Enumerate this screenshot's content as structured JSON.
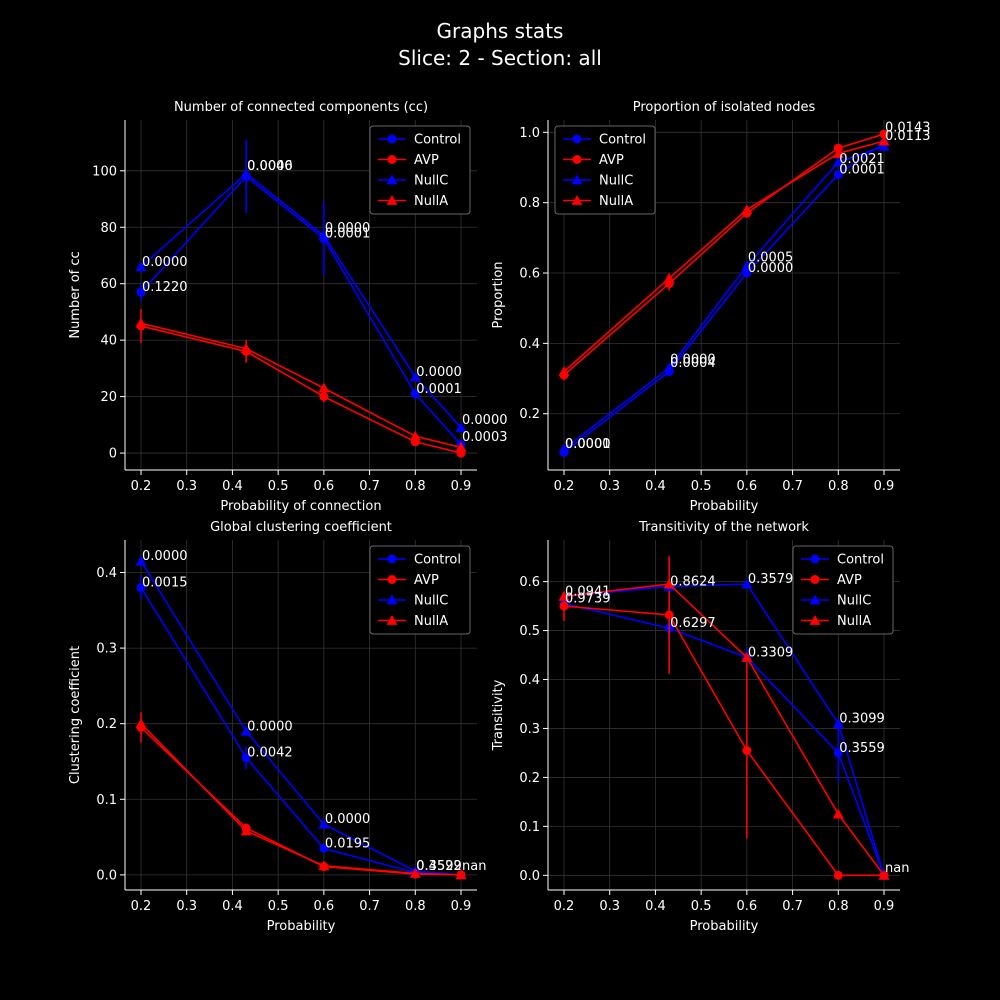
{
  "figure": {
    "title_line1": "Graphs stats",
    "title_line2": "Slice: 2  -  Section: all"
  },
  "colors": {
    "background": "#000000",
    "blue": "#0000ff",
    "red": "#ff0000",
    "grid": "#333333"
  },
  "legend_labels": [
    "Control",
    "AVP",
    "NullC",
    "NullA"
  ],
  "chart_data": [
    {
      "type": "line",
      "title": "Number of connected components (cc)",
      "xlabel": "Probability of connection",
      "ylabel": "Number of cc",
      "xlim": [
        0.165,
        0.935
      ],
      "ylim": [
        -6,
        118
      ],
      "xticks": [
        0.2,
        0.3,
        0.4,
        0.5,
        0.6,
        0.7,
        0.8,
        0.9
      ],
      "yticks": [
        0,
        20,
        40,
        60,
        80,
        100
      ],
      "x": [
        0.2,
        0.43,
        0.6,
        0.8,
        0.9
      ],
      "legend": "top-right",
      "grid": true,
      "series": [
        {
          "name": "Control",
          "color": "blue",
          "marker": "circle",
          "values": [
            57,
            98,
            76,
            21,
            3
          ],
          "err": [
            3,
            13,
            13,
            2,
            1
          ]
        },
        {
          "name": "AVP",
          "color": "red",
          "marker": "circle",
          "values": [
            45,
            36,
            20,
            4,
            0
          ],
          "err": [
            6,
            4,
            2,
            1,
            0.5
          ]
        },
        {
          "name": "NullC",
          "color": "blue",
          "marker": "triangle",
          "values": [
            66,
            99,
            77,
            27,
            9
          ],
          "err": [
            0,
            0,
            0,
            0,
            0
          ]
        },
        {
          "name": "NullA",
          "color": "red",
          "marker": "triangle",
          "values": [
            46,
            37,
            23,
            6,
            2
          ],
          "err": [
            0,
            0,
            0,
            0,
            0
          ]
        }
      ],
      "annotations": [
        {
          "x": 0.2,
          "y": 66,
          "text": "0.0000"
        },
        {
          "x": 0.2,
          "y": 57,
          "text": "0.1220"
        },
        {
          "x": 0.43,
          "y": 100,
          "text": "0.0040"
        },
        {
          "x": 0.43,
          "y": 100,
          "text": "0.0006"
        },
        {
          "x": 0.6,
          "y": 78,
          "text": "0.0000"
        },
        {
          "x": 0.6,
          "y": 76,
          "text": "0.0001"
        },
        {
          "x": 0.8,
          "y": 27,
          "text": "0.0000"
        },
        {
          "x": 0.8,
          "y": 21,
          "text": "0.0001"
        },
        {
          "x": 0.9,
          "y": 10,
          "text": "0.0000"
        },
        {
          "x": 0.9,
          "y": 4,
          "text": "0.0003"
        }
      ]
    },
    {
      "type": "line",
      "title": "Proportion of isolated nodes",
      "xlabel": "Probability",
      "ylabel": "Proportion",
      "xlim": [
        0.165,
        0.935
      ],
      "ylim": [
        0.04,
        1.035
      ],
      "xticks": [
        0.2,
        0.3,
        0.4,
        0.5,
        0.6,
        0.7,
        0.8,
        0.9
      ],
      "yticks": [
        0.2,
        0.4,
        0.6,
        0.8,
        1.0
      ],
      "x": [
        0.2,
        0.43,
        0.6,
        0.8,
        0.9
      ],
      "legend": "top-left",
      "grid": true,
      "series": [
        {
          "name": "Control",
          "color": "blue",
          "marker": "circle",
          "values": [
            0.09,
            0.32,
            0.6,
            0.88,
            0.97
          ],
          "err": [
            0.01,
            0.01,
            0.01,
            0.01,
            0.005
          ]
        },
        {
          "name": "AVP",
          "color": "red",
          "marker": "circle",
          "values": [
            0.31,
            0.57,
            0.77,
            0.955,
            0.995
          ],
          "err": [
            0.015,
            0.02,
            0.01,
            0.005,
            0.003
          ]
        },
        {
          "name": "NullC",
          "color": "blue",
          "marker": "triangle",
          "values": [
            0.1,
            0.33,
            0.62,
            0.915,
            0.96
          ],
          "err": [
            0,
            0,
            0,
            0,
            0
          ]
        },
        {
          "name": "NullA",
          "color": "red",
          "marker": "triangle",
          "values": [
            0.32,
            0.585,
            0.78,
            0.94,
            0.975
          ],
          "err": [
            0,
            0,
            0,
            0,
            0
          ]
        }
      ],
      "annotations": [
        {
          "x": 0.2,
          "y": 0.1,
          "text": "0.0001"
        },
        {
          "x": 0.2,
          "y": 0.1,
          "text": "0.0000"
        },
        {
          "x": 0.43,
          "y": 0.34,
          "text": "0.0000"
        },
        {
          "x": 0.43,
          "y": 0.33,
          "text": "0.0004"
        },
        {
          "x": 0.6,
          "y": 0.63,
          "text": "0.0005"
        },
        {
          "x": 0.6,
          "y": 0.6,
          "text": "0.0000"
        },
        {
          "x": 0.8,
          "y": 0.91,
          "text": "0.0021"
        },
        {
          "x": 0.8,
          "y": 0.88,
          "text": "0.0001"
        },
        {
          "x": 0.9,
          "y": 1.0,
          "text": "0.0143"
        },
        {
          "x": 0.9,
          "y": 0.975,
          "text": "0.0113"
        }
      ]
    },
    {
      "type": "line",
      "title": "Global clustering coefficient",
      "xlabel": "Probability",
      "ylabel": "Clustering coefficient",
      "xlim": [
        0.165,
        0.935
      ],
      "ylim": [
        -0.02,
        0.443
      ],
      "xticks": [
        0.2,
        0.3,
        0.4,
        0.5,
        0.6,
        0.7,
        0.8,
        0.9
      ],
      "yticks": [
        0.0,
        0.1,
        0.2,
        0.3,
        0.4
      ],
      "x": [
        0.2,
        0.43,
        0.6,
        0.8,
        0.9
      ],
      "legend": "top-right",
      "grid": true,
      "series": [
        {
          "name": "Control",
          "color": "blue",
          "marker": "circle",
          "values": [
            0.38,
            0.155,
            0.035,
            0.003,
            0
          ],
          "err": [
            0.015,
            0.015,
            0.004,
            0.001,
            0
          ]
        },
        {
          "name": "AVP",
          "color": "red",
          "marker": "circle",
          "values": [
            0.195,
            0.062,
            0.011,
            0.001,
            0
          ],
          "err": [
            0.02,
            0.005,
            0.003,
            0.0005,
            0
          ]
        },
        {
          "name": "NullC",
          "color": "blue",
          "marker": "triangle",
          "values": [
            0.415,
            0.19,
            0.067,
            0.005,
            0
          ],
          "err": [
            0,
            0,
            0,
            0,
            0
          ]
        },
        {
          "name": "NullA",
          "color": "red",
          "marker": "triangle",
          "values": [
            0.2,
            0.058,
            0.012,
            0.002,
            0
          ],
          "err": [
            0,
            0,
            0,
            0,
            0
          ]
        }
      ],
      "annotations": [
        {
          "x": 0.2,
          "y": 0.415,
          "text": "0.0000"
        },
        {
          "x": 0.2,
          "y": 0.38,
          "text": "0.0015"
        },
        {
          "x": 0.43,
          "y": 0.19,
          "text": "0.0000"
        },
        {
          "x": 0.43,
          "y": 0.155,
          "text": "0.0042"
        },
        {
          "x": 0.6,
          "y": 0.067,
          "text": "0.0000"
        },
        {
          "x": 0.6,
          "y": 0.035,
          "text": "0.0195"
        },
        {
          "x": 0.8,
          "y": 0.005,
          "text": "0.4529"
        },
        {
          "x": 0.8,
          "y": 0.005,
          "text": "0.3592"
        },
        {
          "x": 0.9,
          "y": 0.005,
          "text": "nan"
        }
      ]
    },
    {
      "type": "line",
      "title": "Transitivity of the network",
      "xlabel": "Probability",
      "ylabel": "Transitivity",
      "xlim": [
        0.165,
        0.935
      ],
      "ylim": [
        -0.03,
        0.685
      ],
      "xticks": [
        0.2,
        0.3,
        0.4,
        0.5,
        0.6,
        0.7,
        0.8,
        0.9
      ],
      "yticks": [
        0.0,
        0.1,
        0.2,
        0.3,
        0.4,
        0.5,
        0.6
      ],
      "x": [
        0.2,
        0.43,
        0.6,
        0.8,
        0.9
      ],
      "legend": "top-right",
      "grid": true,
      "series": [
        {
          "name": "Control",
          "color": "blue",
          "marker": "circle",
          "values": [
            0.555,
            0.505,
            0.445,
            0.25,
            0
          ],
          "err": [
            0.015,
            0.035,
            0.02,
            0.06,
            0
          ]
        },
        {
          "name": "AVP",
          "color": "red",
          "marker": "circle",
          "values": [
            0.55,
            0.532,
            0.255,
            0,
            0
          ],
          "err": [
            0.03,
            0.12,
            0.18,
            0,
            0
          ]
        },
        {
          "name": "NullC",
          "color": "blue",
          "marker": "triangle",
          "values": [
            0.57,
            0.59,
            0.595,
            0.31,
            0
          ],
          "err": [
            0,
            0,
            0,
            0,
            0
          ]
        },
        {
          "name": "NullA",
          "color": "red",
          "marker": "triangle",
          "values": [
            0.57,
            0.595,
            0.445,
            0.125,
            0
          ],
          "err": [
            0,
            0,
            0,
            0,
            0
          ]
        }
      ],
      "annotations": [
        {
          "x": 0.2,
          "y": 0.57,
          "text": "0.0941"
        },
        {
          "x": 0.2,
          "y": 0.555,
          "text": "0.9739"
        },
        {
          "x": 0.43,
          "y": 0.59,
          "text": "0.8624"
        },
        {
          "x": 0.43,
          "y": 0.505,
          "text": "0.6297"
        },
        {
          "x": 0.6,
          "y": 0.595,
          "text": "0.3579"
        },
        {
          "x": 0.6,
          "y": 0.445,
          "text": "0.3309"
        },
        {
          "x": 0.8,
          "y": 0.31,
          "text": "0.3099"
        },
        {
          "x": 0.8,
          "y": 0.25,
          "text": "0.3559"
        },
        {
          "x": 0.9,
          "y": 0.005,
          "text": "nan"
        }
      ]
    }
  ]
}
